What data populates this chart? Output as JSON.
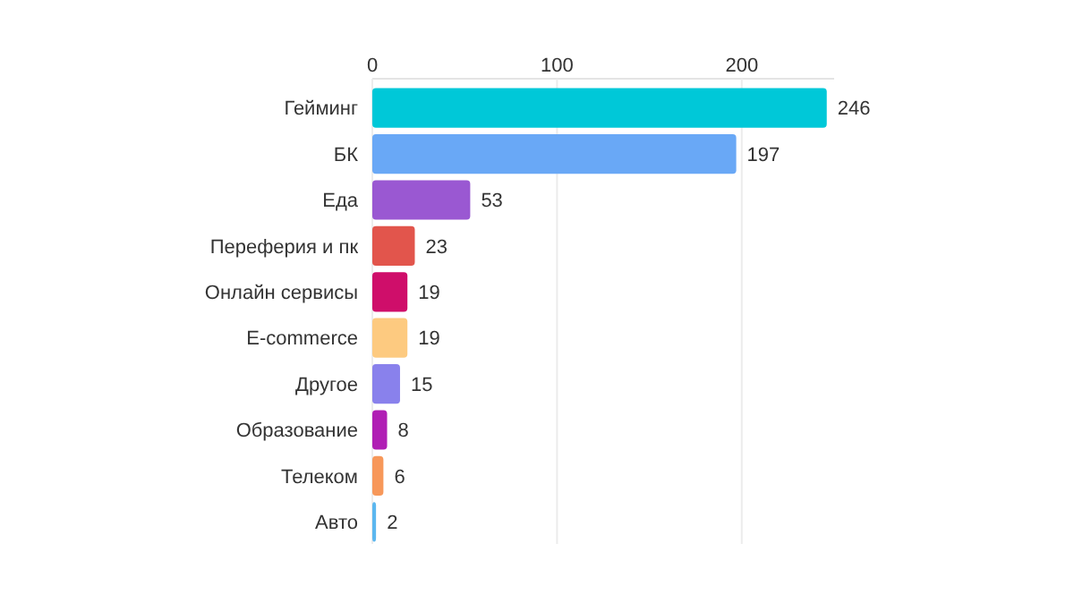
{
  "chart_data": {
    "type": "bar",
    "orientation": "horizontal",
    "categories": [
      "Гейминг",
      "БК",
      "Еда",
      "Переферия и пк",
      "Онлайн сервисы",
      "E-commerce",
      "Другое",
      "Образование",
      "Телеком",
      "Авто"
    ],
    "values": [
      246,
      197,
      53,
      23,
      19,
      19,
      15,
      8,
      6,
      2
    ],
    "colors": [
      "#00c8d8",
      "#69a8f6",
      "#9a58d2",
      "#e2554c",
      "#cf0e6a",
      "#fdca80",
      "#8981ec",
      "#b01eb4",
      "#f7985a",
      "#5cb7ef"
    ],
    "xlim": [
      0,
      250
    ],
    "xticks": [
      0,
      100,
      200
    ],
    "grid": "x",
    "data_labels": true
  }
}
